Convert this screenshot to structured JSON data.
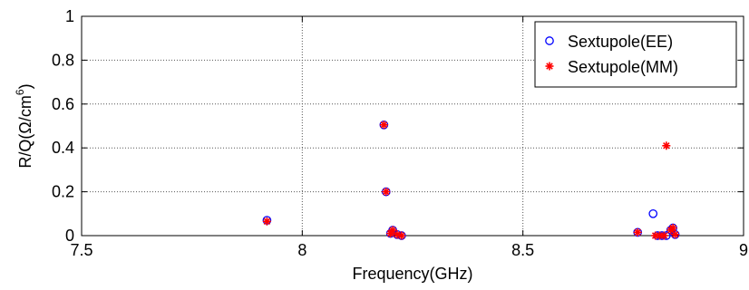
{
  "chart_data": {
    "type": "scatter",
    "xlabel": "Frequency(GHz)",
    "ylabel": {
      "main": "R/Q(",
      "omega": "Ω",
      "mid": "/cm",
      "exp": "6",
      "close": ")"
    },
    "xlim": [
      7.5,
      9
    ],
    "ylim": [
      0,
      1
    ],
    "x_ticks": [
      7.5,
      8,
      8.5,
      9
    ],
    "x_tick_labels": [
      "7.5",
      "8",
      "8.5",
      "9"
    ],
    "y_ticks": [
      0,
      0.2,
      0.4,
      0.6,
      0.8,
      1
    ],
    "y_tick_labels": [
      "0",
      "0.2",
      "0.4",
      "0.6",
      "0.8",
      "1"
    ],
    "grid": true,
    "legend_position": "top-right",
    "series": [
      {
        "name": "Sextupole(EE)",
        "marker": "circle",
        "color": "#0000ff",
        "points": [
          [
            7.92,
            0.07
          ],
          [
            8.185,
            0.505
          ],
          [
            8.19,
            0.2
          ],
          [
            8.2,
            0.01
          ],
          [
            8.205,
            0.025
          ],
          [
            8.215,
            0.005
          ],
          [
            8.225,
            0.0
          ],
          [
            8.76,
            0.015
          ],
          [
            8.795,
            0.1
          ],
          [
            8.805,
            0.0
          ],
          [
            8.815,
            0.0
          ],
          [
            8.825,
            0.0
          ],
          [
            8.835,
            0.025
          ],
          [
            8.84,
            0.035
          ],
          [
            8.845,
            0.005
          ]
        ]
      },
      {
        "name": "Sextupole(MM)",
        "marker": "star",
        "color": "#ff0000",
        "points": [
          [
            7.92,
            0.065
          ],
          [
            8.185,
            0.505
          ],
          [
            8.19,
            0.2
          ],
          [
            8.2,
            0.01
          ],
          [
            8.205,
            0.025
          ],
          [
            8.215,
            0.005
          ],
          [
            8.225,
            0.0
          ],
          [
            8.76,
            0.015
          ],
          [
            8.8,
            0.0
          ],
          [
            8.81,
            0.0
          ],
          [
            8.82,
            0.0
          ],
          [
            8.825,
            0.41
          ],
          [
            8.835,
            0.025
          ],
          [
            8.84,
            0.035
          ],
          [
            8.845,
            0.005
          ]
        ]
      }
    ]
  }
}
